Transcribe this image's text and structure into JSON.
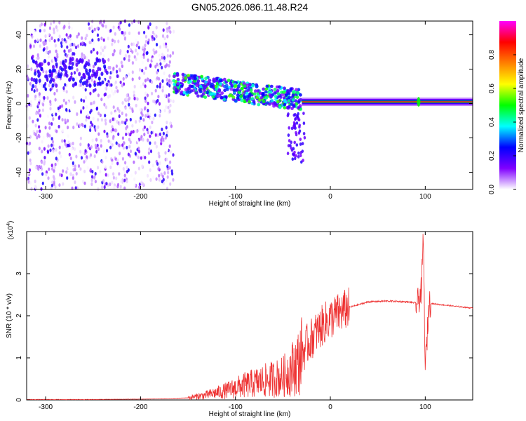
{
  "title": "GN05.2026.086.11.48.R24",
  "chart_data": [
    {
      "type": "heatmap",
      "xlabel": "Height of straight line (km)",
      "ylabel": "Frequency (Hz)",
      "xlim": [
        -320,
        150
      ],
      "ylim": [
        -50,
        48
      ],
      "xticks": [
        -300,
        -200,
        -100,
        0,
        100
      ],
      "yticks": [
        -40,
        -20,
        0,
        20,
        40
      ],
      "colorbar": {
        "label": "Normalized spectral amplitude",
        "range": [
          0,
          1
        ],
        "ticks": [
          0.0,
          0.2,
          0.4,
          0.6,
          0.8
        ],
        "tick_labels": [
          "0.0",
          "0.2",
          "0.4",
          "0.6",
          "0.8"
        ],
        "colormap": [
          "#ffffff",
          "#8000ff",
          "#0000ff",
          "#00ffff",
          "#00ff00",
          "#ffff00",
          "#ff8000",
          "#ff0000",
          "#ff00ff"
        ]
      },
      "regions": [
        {
          "x": [
            -320,
            -165
          ],
          "freq_range": [
            -50,
            48
          ],
          "amplitude": 0.15,
          "desc": "broadband noise"
        },
        {
          "x": [
            -165,
            -30
          ],
          "freq_trend": [
            12,
            2
          ],
          "amplitude": 0.45
        },
        {
          "x": [
            -30,
            150
          ],
          "freq": 1,
          "amplitude": 0.9
        },
        {
          "x": [
            93,
            93
          ],
          "freq": 1,
          "amplitude": 0.5
        }
      ]
    },
    {
      "type": "line",
      "xlabel": "Height of straight line (km)",
      "ylabel": "SNR (10 * v/v)",
      "y_multiplier": "(x10^4)",
      "multiplier_base": "(x10",
      "multiplier_exp": "4",
      "multiplier_close": ")",
      "xlim": [
        -320,
        150
      ],
      "ylim": [
        0,
        4
      ],
      "xticks": [
        -300,
        -200,
        -100,
        0,
        100
      ],
      "yticks": [
        0,
        1,
        2,
        3
      ],
      "color": "#ee3333",
      "series": [
        {
          "x": [
            -320,
            -250,
            -200,
            -170,
            -150,
            -130,
            -110,
            -90,
            -70,
            -50,
            -35,
            -25,
            -15,
            -5,
            5,
            20,
            40,
            60,
            80,
            92,
            96,
            98,
            100,
            104,
            110,
            130,
            150
          ],
          "y": [
            0.01,
            0.01,
            0.02,
            0.03,
            0.05,
            0.12,
            0.22,
            0.35,
            0.45,
            0.55,
            0.85,
            1.3,
            1.6,
            1.85,
            2.0,
            2.2,
            2.33,
            2.35,
            2.33,
            2.3,
            2.6,
            3.9,
            0.7,
            2.3,
            2.28,
            2.23,
            2.18
          ]
        }
      ]
    }
  ]
}
